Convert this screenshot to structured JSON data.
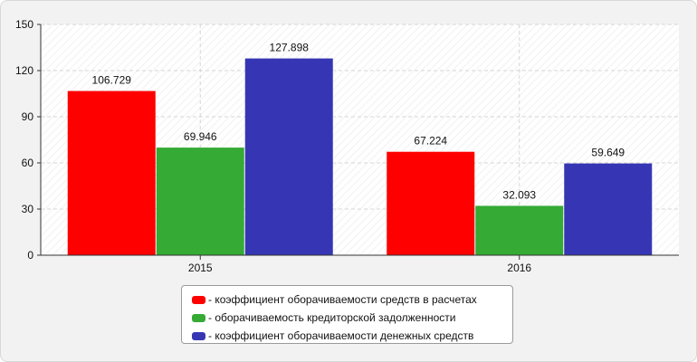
{
  "chart_data": {
    "type": "bar",
    "title": "",
    "xlabel": "",
    "ylabel": "",
    "categories": [
      "2015",
      "2016"
    ],
    "ylim": [
      0,
      150
    ],
    "yticks": [
      0,
      30,
      60,
      90,
      120,
      150
    ],
    "grid": true,
    "legend_position": "bottom",
    "series": [
      {
        "name": "- коэффициент оборачиваемости средств в расчетах",
        "color": "#ff0000",
        "values": [
          106.729,
          67.224
        ],
        "labels": [
          "106.729",
          "67.224"
        ]
      },
      {
        "name": "- оборачиваемость кредиторской задолженности",
        "color": "#35aa35",
        "values": [
          69.946,
          32.093
        ],
        "labels": [
          "69.946",
          "32.093"
        ]
      },
      {
        "name": "- коэффициент оборачиваемости денежных средств",
        "color": "#3636b4",
        "values": [
          127.898,
          59.649
        ],
        "labels": [
          "127.898",
          "59.649"
        ]
      }
    ]
  }
}
